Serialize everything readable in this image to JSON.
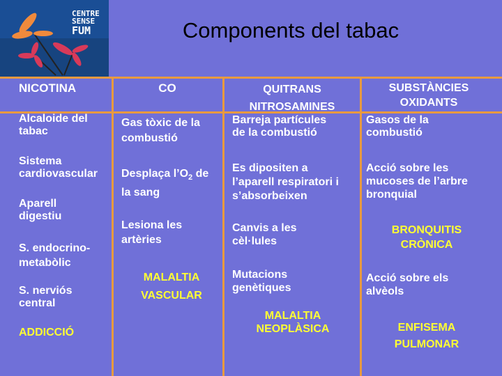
{
  "title": "Components del tabac",
  "logo": {
    "line1": "CENTRE",
    "line2": "SENSE",
    "line3": "FUM"
  },
  "columns": [
    {
      "header": "NICOTINA",
      "items": [
        "Alcaloide del\ntabac",
        "Sistema\ncardiovascular",
        "Aparell\ndigestiu",
        "S. endocrino-\nmetabòlic",
        "S. nerviós\ncentral"
      ],
      "highlights": [
        "ADDICCIÓ"
      ]
    },
    {
      "header": "CO",
      "items": [
        "Gas tòxic de la\ncombustió",
        "Desplaça l’O",
        "2",
        " de\nla sang",
        "Lesiona les\nartèries"
      ],
      "highlights": [
        "MALALTIA\nVASCULAR"
      ]
    },
    {
      "header": "QUITRANS\nNITROSAMINES",
      "items": [
        "Barreja  partícules\nde la combustió",
        "Es dipositen  a\nl’aparell respiratori i\ns’absorbeixen",
        "Canvis a les\ncèl·lules",
        "Mutacions\ngenètiques"
      ],
      "highlights": [
        "MALALTIA\nNEOPLÀSICA"
      ]
    },
    {
      "header": "SUBSTÀNCIES\nOXIDANTS",
      "items": [
        "Gasos de la\ncombustió",
        "Acció sobre les\nmucoses de l’arbre\nbronquial",
        "Acció sobre els\nalvèols"
      ],
      "highlights": [
        "BRONQUITIS\nCRÒNICA",
        "ENFISEMA\nPULMONAR"
      ]
    }
  ],
  "colors": {
    "background": "#7070d8",
    "grid": "#e89a40",
    "highlight": "#ffff33"
  }
}
